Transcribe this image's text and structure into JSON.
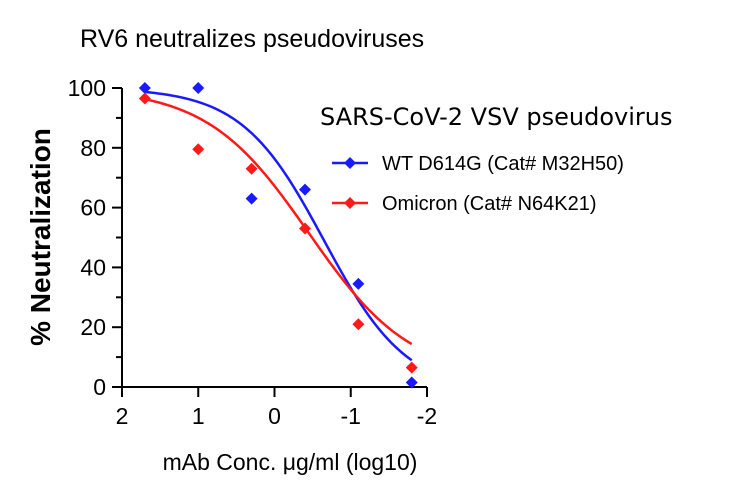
{
  "chart_data": {
    "type": "scatter",
    "title": "RV6 neutralizes pseudoviruses",
    "xlabel": "mAb Conc. μg/ml (log10)",
    "ylabel": "% Neutralization",
    "xlim": [
      2,
      -2
    ],
    "ylim": [
      0,
      100
    ],
    "x_reversed": true,
    "xticks": [
      2,
      1,
      0,
      -1,
      -2
    ],
    "xtick_labels": [
      "2",
      "1",
      "0",
      "-1",
      "-2"
    ],
    "yticks": [
      0,
      20,
      40,
      60,
      80,
      100
    ],
    "ytick_labels": [
      "0",
      "20",
      "40",
      "60",
      "80",
      "100"
    ],
    "grid": false,
    "legend_title": "SARS-CoV-2 VSV pseudovirus",
    "legend_position": "top-right",
    "series": [
      {
        "name": "WT D614G (Cat# M32H50)",
        "color": "#1a1aff",
        "marker": "diamond",
        "x": [
          1.7,
          1.0,
          0.3,
          -0.4,
          -1.1,
          -1.8
        ],
        "y": [
          100,
          100,
          63,
          66,
          34.5,
          1.5
        ],
        "fit_curve": {
          "top": 100,
          "bottom": -2,
          "logIC50": -0.65,
          "hill": 0.8
        }
      },
      {
        "name": "Omicron (Cat# N64K21)",
        "color": "#ff1a1a",
        "marker": "diamond",
        "x": [
          1.7,
          1.0,
          0.3,
          -0.4,
          -1.1,
          -1.8
        ],
        "y": [
          96.5,
          79.5,
          73,
          53,
          21,
          6.5
        ],
        "fit_curve": {
          "top": 100,
          "bottom": 3,
          "logIC50": -0.45,
          "hill": 0.65
        }
      }
    ]
  }
}
